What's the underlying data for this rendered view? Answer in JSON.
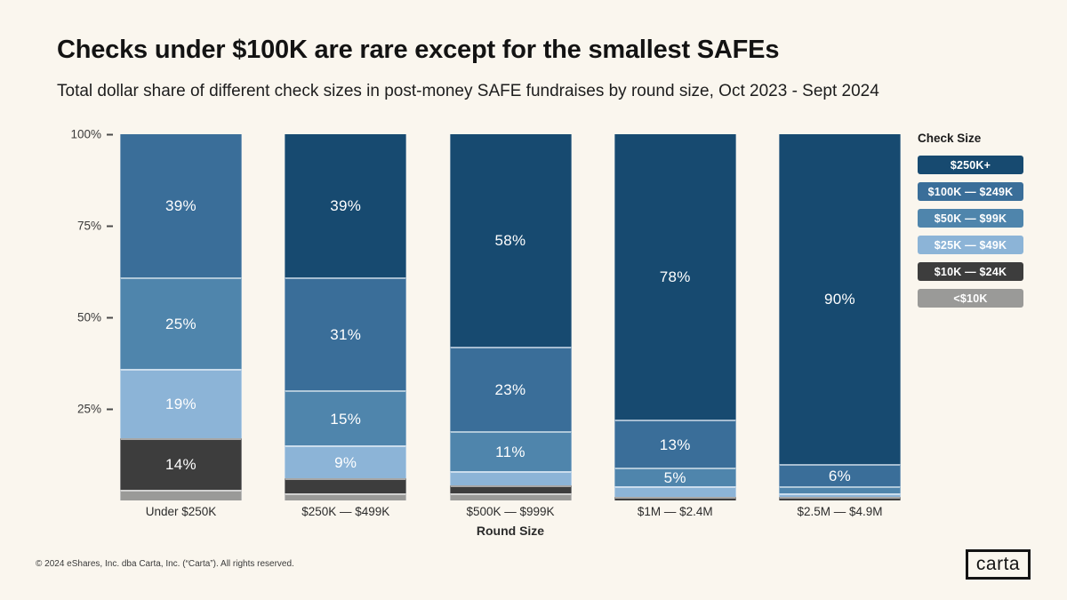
{
  "page": {
    "title": "Checks under $100K are rare except for the smallest SAFEs",
    "subtitle": "Total dollar share of different check sizes in post-money SAFE fundraises by round size, Oct 2023 - Sept 2024",
    "footer": "© 2024 eShares, Inc. dba Carta, Inc. (“Carta”). All rights reserved.",
    "logo_text": "carta",
    "background_color": "#FAF6EE"
  },
  "chart_data": {
    "type": "bar",
    "stacked": true,
    "percent_stacked": true,
    "title": "Checks under $100K are rare except for the smallest SAFEs",
    "subtitle": "Total dollar share of different check sizes in post-money SAFE fundraises by round size, Oct 2023 - Sept 2024",
    "xlabel": "Round Size",
    "ylabel": "",
    "ylim": [
      0,
      100
    ],
    "y_ticks": [
      "100%",
      "75%",
      "50%",
      "25%"
    ],
    "grid": false,
    "legend_title": "Check Size",
    "legend_position": "right",
    "categories": [
      "Under $250K",
      "$250K — $499K",
      "$500K — $999K",
      "$1M — $2.4M",
      "$2.5M — $4.9M"
    ],
    "series": [
      {
        "name": "$250K+",
        "color": "#174A70",
        "values": [
          0,
          39,
          58,
          78,
          90
        ],
        "labels": [
          "",
          "39%",
          "58%",
          "78%",
          "90%"
        ]
      },
      {
        "name": "$100K — $249K",
        "color": "#3A6E99",
        "values": [
          39,
          31,
          23,
          13,
          6
        ],
        "labels": [
          "39%",
          "31%",
          "23%",
          "13%",
          "6%"
        ]
      },
      {
        "name": "$50K — $99K",
        "color": "#4F85AC",
        "values": [
          25,
          15,
          11,
          5,
          2
        ],
        "labels": [
          "25%",
          "15%",
          "11%",
          "5%",
          ""
        ]
      },
      {
        "name": "$25K — $49K",
        "color": "#8CB4D7",
        "values": [
          19,
          9,
          4,
          3,
          1
        ],
        "labels": [
          "19%",
          "9%",
          "",
          "",
          ""
        ]
      },
      {
        "name": "$10K — $24K",
        "color": "#3D3D3D",
        "values": [
          14,
          4,
          2,
          1,
          1
        ],
        "labels": [
          "14%",
          "",
          "",
          "",
          ""
        ]
      },
      {
        "name": "<$10K",
        "color": "#9A9A98",
        "values": [
          3,
          2,
          2,
          0,
          0
        ],
        "labels": [
          "",
          "",
          "",
          "",
          ""
        ]
      }
    ]
  }
}
